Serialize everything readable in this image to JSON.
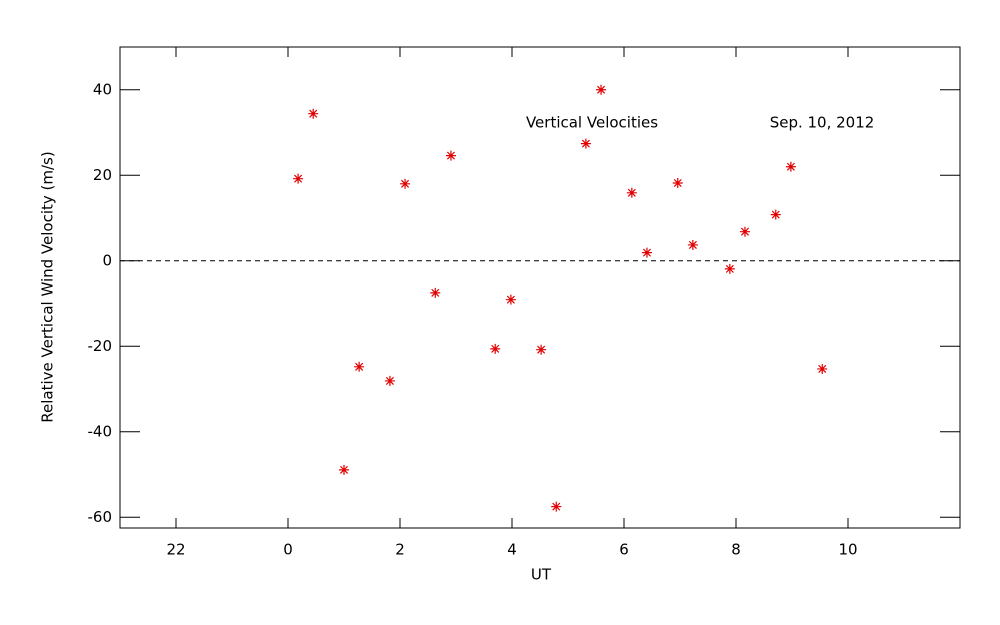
{
  "chart_data": {
    "type": "scatter",
    "x_label": "UT",
    "y_label": "Relative Vertical Wind Velocity (m/s)",
    "annotations": [
      "Vertical Velocities",
      "Sep. 10, 2012"
    ],
    "x": [
      0.18,
      0.45,
      1.0,
      1.27,
      1.82,
      2.09,
      2.63,
      2.91,
      3.7,
      3.98,
      4.52,
      4.79,
      5.32,
      5.59,
      6.14,
      6.41,
      6.96,
      7.23,
      7.89,
      8.16,
      8.71,
      8.98,
      9.54
    ],
    "series": [
      {
        "name": "Vertical Velocities",
        "color": "#e00000",
        "values": [
          19.2,
          34.4,
          -48.9,
          -24.8,
          -28.1,
          18.0,
          -7.5,
          24.6,
          -20.6,
          -9.1,
          -20.8,
          -57.5,
          27.4,
          40.0,
          15.9,
          1.9,
          18.2,
          3.7,
          -1.9,
          6.8,
          10.8,
          22.0,
          -25.3
        ]
      }
    ],
    "xlim": [
      -3,
      12
    ],
    "ylim": [
      -62.5,
      50
    ],
    "xticks": [
      {
        "value": -2,
        "label": "22"
      },
      0,
      2,
      4,
      6,
      8,
      10
    ],
    "yticks": [
      -60,
      -40,
      -20,
      0,
      20,
      40
    ],
    "hline": 0
  }
}
